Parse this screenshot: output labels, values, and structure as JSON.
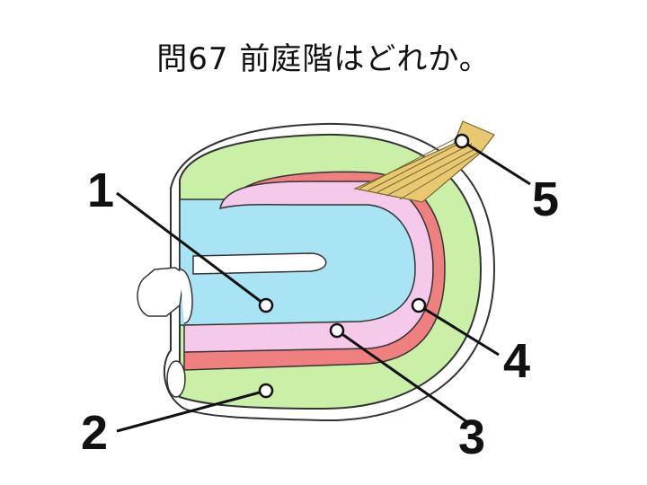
{
  "title": "問67 前庭階はどれか。",
  "labels": [
    {
      "id": "1",
      "text": "1"
    },
    {
      "id": "2",
      "text": "2"
    },
    {
      "id": "3",
      "text": "3"
    },
    {
      "id": "4",
      "text": "4"
    },
    {
      "id": "5",
      "text": "5"
    }
  ],
  "colors": {
    "outer_lymph": "#c9f0a6",
    "inner_blue": "#a9e4f5",
    "middle_pink": "#f4c9ea",
    "membrane_red": "#f08080",
    "membrane_blue": "#6666aa",
    "nerve": "#e8c870",
    "outline": "#333333"
  }
}
